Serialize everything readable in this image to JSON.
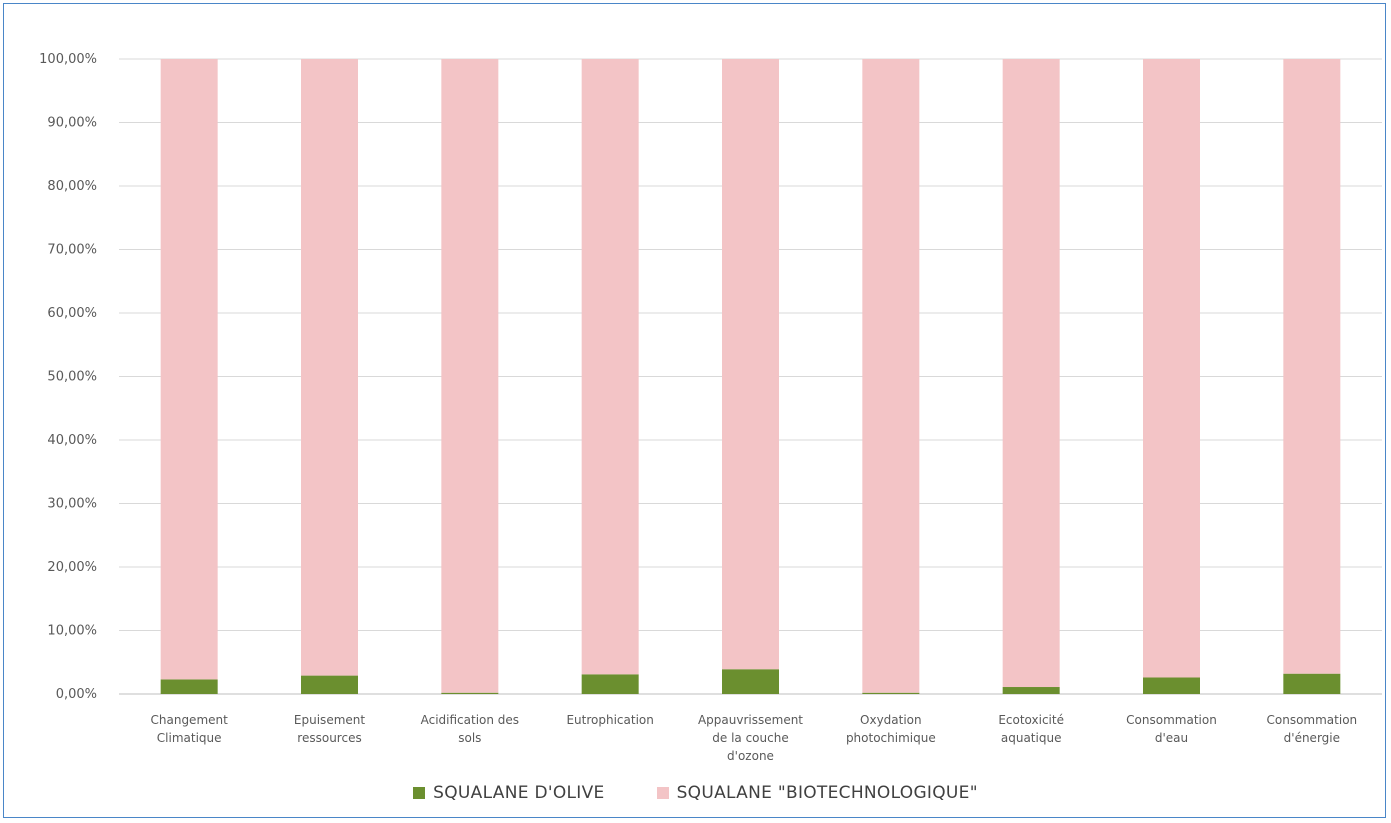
{
  "chart_data": {
    "type": "bar",
    "stacked": true,
    "normalized": true,
    "categories": [
      [
        "Changement",
        "Climatique"
      ],
      [
        "Epuisement",
        "ressources"
      ],
      [
        "Acidification des",
        "sols"
      ],
      [
        "Eutrophication"
      ],
      [
        "Appauvrissement",
        "de la couche",
        "d'ozone"
      ],
      [
        "Oxydation",
        "photochimique"
      ],
      [
        "Ecotoxicité",
        "aquatique"
      ],
      [
        "Consommation",
        "d'eau"
      ],
      [
        "Consommation",
        "d'énergie"
      ]
    ],
    "series": [
      {
        "name": "SQUALANE D'OLIVE",
        "color": "#6b8f2f",
        "values": [
          2.3,
          2.9,
          0.2,
          3.1,
          3.9,
          0.2,
          1.1,
          2.6,
          3.2
        ]
      },
      {
        "name": "SQUALANE \"BIOTECHNOLOGIQUE\"",
        "color": "#f3c4c6",
        "values": [
          97.7,
          97.1,
          99.8,
          96.9,
          96.1,
          99.8,
          98.9,
          97.4,
          96.8
        ]
      }
    ],
    "ylim": [
      0,
      100
    ],
    "yticks": [
      "0,00%",
      "10,00%",
      "20,00%",
      "30,00%",
      "40,00%",
      "50,00%",
      "60,00%",
      "70,00%",
      "80,00%",
      "90,00%",
      "100,00%"
    ],
    "ytick_values": [
      0,
      10,
      20,
      30,
      40,
      50,
      60,
      70,
      80,
      90,
      100
    ],
    "grid": true,
    "legend_position": "bottom"
  }
}
